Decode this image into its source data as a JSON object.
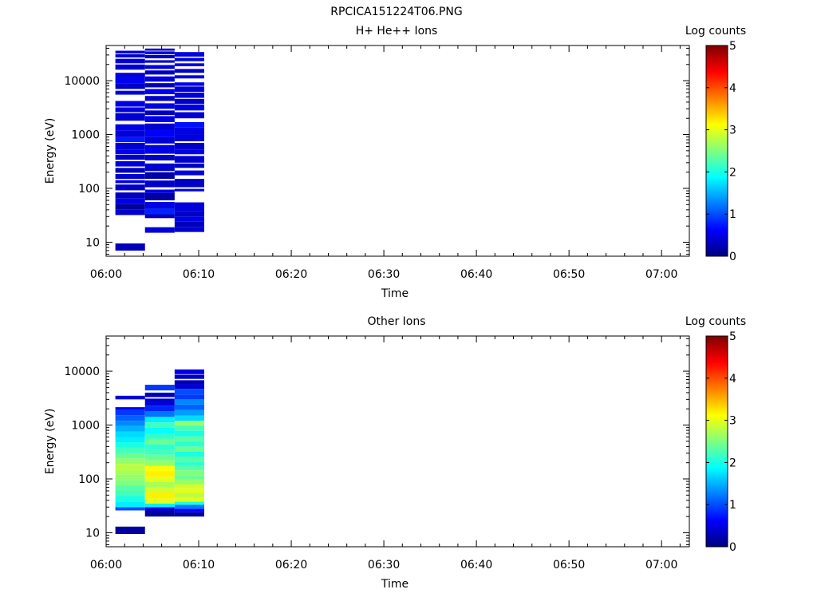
{
  "figure": {
    "title": "RPCICA151224T06.PNG"
  },
  "colormap": {
    "name": "jet",
    "stops": [
      "#00007f",
      "#0000ff",
      "#007fff",
      "#00ffff",
      "#7fff7f",
      "#ffff00",
      "#ff7f00",
      "#ff0000",
      "#7f0000"
    ]
  },
  "chart_data": [
    {
      "type": "heatmap",
      "title": "H+ He++ Ions",
      "xlabel": "Time",
      "ylabel": "Energy (eV)",
      "x_range": [
        "06:00",
        "07:03"
      ],
      "x_ticks": [
        "06:00",
        "06:10",
        "06:20",
        "06:30",
        "06:40",
        "06:50",
        "07:00"
      ],
      "y_scale": "log",
      "y_range": [
        5.5,
        45000
      ],
      "y_ticks": [
        {
          "value": 10,
          "label": "10"
        },
        {
          "value": 100,
          "label": "100"
        },
        {
          "value": 1000,
          "label": "1000"
        },
        {
          "value": 10000,
          "label": "10000"
        }
      ],
      "colorbar": {
        "label": "Log counts",
        "range": [
          0,
          5
        ],
        "ticks": [
          "0",
          "1",
          "2",
          "3",
          "4",
          "5"
        ]
      },
      "columns": [
        {
          "t_start": "06:01",
          "t_end": "06:04:12",
          "cells": [
            [
              7,
              9.5,
              0.3
            ],
            [
              32,
              41,
              0.4
            ],
            [
              41,
              52,
              0.15
            ],
            [
              52,
              66,
              0.5
            ],
            [
              66,
              84,
              0.3
            ],
            [
              92,
              118,
              0.35
            ],
            [
              125,
              142,
              0.5
            ],
            [
              150,
              185,
              0.4
            ],
            [
              195,
              240,
              0.3
            ],
            [
              255,
              320,
              0.45
            ],
            [
              340,
              420,
              0.35
            ],
            [
              430,
              520,
              0.55
            ],
            [
              520,
              700,
              0.4
            ],
            [
              720,
              900,
              0.75
            ],
            [
              900,
              1200,
              0.45
            ],
            [
              1200,
              1550,
              0.5
            ],
            [
              1800,
              2500,
              0.4
            ],
            [
              2600,
              3200,
              0.45
            ],
            [
              3300,
              4200,
              0.5
            ],
            [
              5500,
              6500,
              0.45
            ],
            [
              7000,
              9000,
              0.35
            ],
            [
              9000,
              11500,
              0.55
            ],
            [
              11500,
              14000,
              0.45
            ],
            [
              16000,
              20000,
              0.4
            ],
            [
              21000,
              25500,
              0.45
            ],
            [
              27000,
              31000,
              0.4
            ],
            [
              32000,
              36000,
              0.5
            ]
          ]
        },
        {
          "t_start": "06:04:12",
          "t_end": "06:07:24",
          "cells": [
            [
              15,
              19,
              0.45
            ],
            [
              28,
              33,
              0.3
            ],
            [
              33,
              42,
              0.8
            ],
            [
              42,
              56,
              0.5
            ],
            [
              60,
              82,
              0.15
            ],
            [
              82,
              95,
              0.5
            ],
            [
              105,
              140,
              0.35
            ],
            [
              150,
              200,
              0.2
            ],
            [
              210,
              290,
              0.4
            ],
            [
              330,
              420,
              0.35
            ],
            [
              440,
              640,
              0.5
            ],
            [
              680,
              900,
              0.4
            ],
            [
              900,
              1250,
              0.6
            ],
            [
              1250,
              1600,
              0.4
            ],
            [
              1700,
              2200,
              0.5
            ],
            [
              2300,
              2800,
              0.3
            ],
            [
              3000,
              3800,
              0.5
            ],
            [
              4200,
              5200,
              0.35
            ],
            [
              5600,
              7000,
              0.55
            ],
            [
              7500,
              9000,
              0.25
            ],
            [
              9600,
              12000,
              0.45
            ],
            [
              13000,
              15500,
              0.3
            ],
            [
              16500,
              19500,
              0.5
            ],
            [
              21500,
              24000,
              0.4
            ],
            [
              26000,
              30000,
              0.3
            ],
            [
              31000,
              35000,
              0.45
            ],
            [
              36000,
              39500,
              0.35
            ]
          ]
        },
        {
          "t_start": "06:07:24",
          "t_end": "06:10:36",
          "cells": [
            [
              15.5,
              19,
              0.4
            ],
            [
              19,
              24,
              0.3
            ],
            [
              24,
              30,
              0.5
            ],
            [
              30,
              38,
              0.35
            ],
            [
              38,
              55,
              0.45
            ],
            [
              88,
              98,
              0.5
            ],
            [
              105,
              150,
              0.35
            ],
            [
              175,
              215,
              0.45
            ],
            [
              240,
              290,
              0.35
            ],
            [
              300,
              400,
              0.4
            ],
            [
              430,
              520,
              0.5
            ],
            [
              520,
              700,
              0.35
            ],
            [
              750,
              1000,
              0.45
            ],
            [
              1000,
              1350,
              0.5
            ],
            [
              1350,
              1700,
              0.7
            ],
            [
              2000,
              2600,
              0.4
            ],
            [
              2800,
              3600,
              0.5
            ],
            [
              3700,
              4600,
              0.35
            ],
            [
              4800,
              6000,
              0.45
            ],
            [
              6200,
              7800,
              0.4
            ],
            [
              8000,
              9300,
              0.55
            ],
            [
              11000,
              12600,
              0.45
            ],
            [
              14000,
              16500,
              0.4
            ],
            [
              18500,
              21000,
              0.5
            ],
            [
              23000,
              26500,
              0.45
            ],
            [
              28000,
              34000,
              0.5
            ]
          ]
        }
      ]
    },
    {
      "type": "heatmap",
      "title": "Other Ions",
      "xlabel": "Time",
      "ylabel": "Energy (eV)",
      "x_range": [
        "06:00",
        "07:03"
      ],
      "x_ticks": [
        "06:00",
        "06:10",
        "06:20",
        "06:30",
        "06:40",
        "06:50",
        "07:00"
      ],
      "y_scale": "log",
      "y_range": [
        5.5,
        45000
      ],
      "y_ticks": [
        {
          "value": 10,
          "label": "10"
        },
        {
          "value": 100,
          "label": "100"
        },
        {
          "value": 1000,
          "label": "1000"
        },
        {
          "value": 10000,
          "label": "10000"
        }
      ],
      "colorbar": {
        "label": "Log counts",
        "range": [
          0,
          5
        ],
        "ticks": [
          "0",
          "1",
          "2",
          "3",
          "4",
          "5"
        ]
      },
      "columns": [
        {
          "t_start": "06:01",
          "t_end": "06:04:12",
          "cells": [
            [
              9.5,
              13,
              0.15
            ],
            [
              26,
              30,
              1.0
            ],
            [
              30,
              38,
              1.8
            ],
            [
              38,
              48,
              2.0
            ],
            [
              48,
              60,
              2.2
            ],
            [
              60,
              76,
              2.3
            ],
            [
              76,
              96,
              2.5
            ],
            [
              96,
              120,
              2.6
            ],
            [
              120,
              150,
              2.7
            ],
            [
              150,
              190,
              2.8
            ],
            [
              190,
              240,
              2.6
            ],
            [
              240,
              300,
              2.4
            ],
            [
              300,
              380,
              2.2
            ],
            [
              380,
              480,
              2.0
            ],
            [
              480,
              600,
              1.8
            ],
            [
              600,
              760,
              1.7
            ],
            [
              760,
              960,
              1.5
            ],
            [
              960,
              1200,
              1.3
            ],
            [
              1200,
              1520,
              1.1
            ],
            [
              1520,
              1900,
              0.9
            ],
            [
              1900,
              2150,
              0.6
            ],
            [
              3000,
              3500,
              0.45
            ]
          ]
        },
        {
          "t_start": "06:04:12",
          "t_end": "06:07:24",
          "cells": [
            [
              20,
              26,
              0.15
            ],
            [
              26,
              30,
              0.5
            ],
            [
              30,
              35,
              1.8
            ],
            [
              35,
              44,
              3.0
            ],
            [
              44,
              56,
              3.2
            ],
            [
              56,
              70,
              2.9
            ],
            [
              70,
              88,
              2.7
            ],
            [
              88,
              110,
              3.0
            ],
            [
              110,
              140,
              3.2
            ],
            [
              140,
              175,
              3.1
            ],
            [
              175,
              220,
              2.6
            ],
            [
              220,
              280,
              2.4
            ],
            [
              280,
              350,
              2.2
            ],
            [
              350,
              440,
              2.1
            ],
            [
              440,
              560,
              2.4
            ],
            [
              560,
              700,
              2.1
            ],
            [
              700,
              900,
              1.9
            ],
            [
              900,
              1120,
              2.2
            ],
            [
              1120,
              1420,
              1.8
            ],
            [
              1420,
              1800,
              1.2
            ],
            [
              1800,
              2300,
              0.8
            ],
            [
              2300,
              3100,
              0.4
            ],
            [
              3300,
              4000,
              0.3
            ],
            [
              4400,
              5600,
              0.9
            ]
          ]
        },
        {
          "t_start": "06:07:24",
          "t_end": "06:10:36",
          "cells": [
            [
              20,
              24,
              0.15
            ],
            [
              24,
              28,
              0.6
            ],
            [
              28,
              33,
              1.2
            ],
            [
              33,
              38,
              2.0
            ],
            [
              38,
              45,
              3.0
            ],
            [
              45,
              55,
              2.8
            ],
            [
              55,
              66,
              3.0
            ],
            [
              66,
              80,
              2.9
            ],
            [
              80,
              98,
              2.6
            ],
            [
              98,
              118,
              2.4
            ],
            [
              118,
              145,
              2.5
            ],
            [
              145,
              175,
              2.3
            ],
            [
              175,
              210,
              2.1
            ],
            [
              210,
              260,
              2.3
            ],
            [
              260,
              320,
              2.0
            ],
            [
              320,
              400,
              2.4
            ],
            [
              400,
              500,
              2.1
            ],
            [
              500,
              620,
              2.3
            ],
            [
              620,
              780,
              2.0
            ],
            [
              780,
              980,
              2.2
            ],
            [
              980,
              1200,
              2.6
            ],
            [
              1200,
              1500,
              1.7
            ],
            [
              1500,
              1900,
              1.4
            ],
            [
              1900,
              2400,
              1.1
            ],
            [
              2400,
              3000,
              1.3
            ],
            [
              3000,
              3700,
              0.9
            ],
            [
              3700,
              4700,
              1.0
            ],
            [
              4700,
              5800,
              0.4
            ],
            [
              5800,
              6800,
              0.25
            ],
            [
              7200,
              8600,
              0.35
            ],
            [
              8800,
              10800,
              0.5
            ]
          ]
        }
      ]
    }
  ]
}
